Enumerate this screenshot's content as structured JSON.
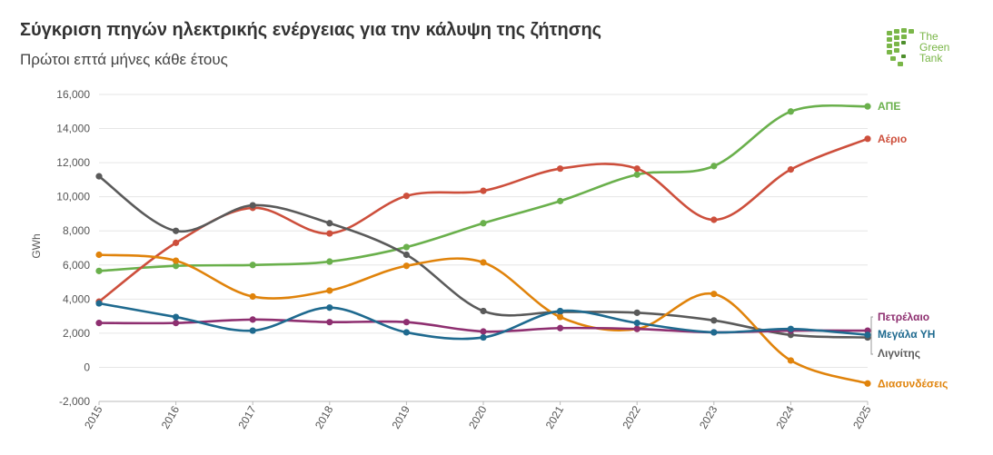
{
  "header": {
    "title": "Σύγκριση πηγών ηλεκτρικής ενέργειας για την κάλυψη της ζήτησης",
    "subtitle": "Πρώτοι επτά μήνες κάθε έτους"
  },
  "logo": {
    "line1": "The",
    "line2": "Green",
    "line3": "Tank"
  },
  "chart_data": {
    "type": "line",
    "ylabel": "GWh",
    "ylim": [
      -2000,
      16000
    ],
    "yticks": [
      -2000,
      0,
      2000,
      4000,
      6000,
      8000,
      10000,
      12000,
      14000,
      16000
    ],
    "ytick_labels": [
      "-2,000",
      "0",
      "2,000",
      "4,000",
      "6,000",
      "8,000",
      "10,000",
      "12,000",
      "14,000",
      "16,000"
    ],
    "x": [
      "2015",
      "2016",
      "2017",
      "2018",
      "2019",
      "2020",
      "2021",
      "2022",
      "2023",
      "2024",
      "2025"
    ],
    "grid": true,
    "legend": "right-end labels",
    "series": [
      {
        "name": "ΑΠΕ",
        "color": "#6ab04c",
        "values": [
          5650,
          5950,
          6000,
          6200,
          7050,
          8450,
          9750,
          11300,
          11800,
          15000,
          15300
        ]
      },
      {
        "name": "Αέριο",
        "color": "#cd4f3c",
        "values": [
          3850,
          7300,
          9350,
          7850,
          10050,
          10350,
          11650,
          11650,
          8650,
          11600,
          13400
        ]
      },
      {
        "name": "Λιγνίτης",
        "color": "#5a5a5a",
        "values": [
          11200,
          8000,
          9500,
          8450,
          6600,
          3300,
          3250,
          3200,
          2750,
          1900,
          1750
        ]
      },
      {
        "name": "Διασυνδέσεις",
        "color": "#e0830b",
        "values": [
          6600,
          6250,
          4150,
          4500,
          5950,
          6150,
          2950,
          2250,
          4300,
          400,
          -950
        ]
      },
      {
        "name": "Πετρέλαιο",
        "color": "#8e2f70",
        "values": [
          2600,
          2600,
          2800,
          2650,
          2650,
          2100,
          2300,
          2250,
          2050,
          2150,
          2150
        ]
      },
      {
        "name": "Μεγάλα ΥΗ",
        "color": "#1f6a8f",
        "values": [
          3750,
          2950,
          2150,
          3500,
          2050,
          1750,
          3300,
          2600,
          2050,
          2250,
          1900
        ]
      }
    ]
  }
}
